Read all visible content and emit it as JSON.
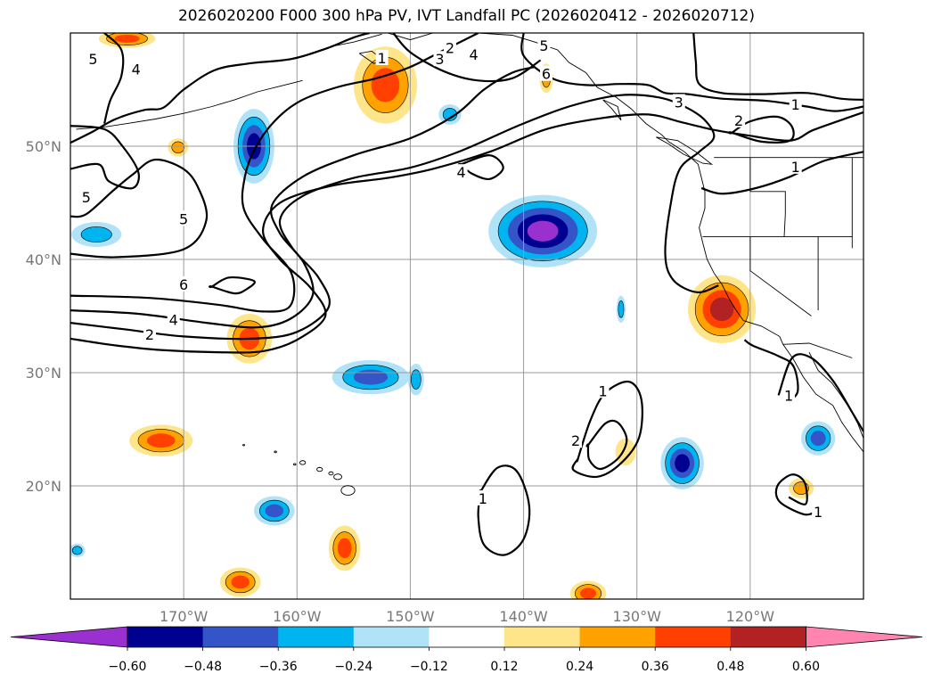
{
  "chart_data": {
    "type": "contour-map",
    "title": "2026020200 F000 300 hPa PV, IVT Landfall PC (2026020412 - 2026020712)",
    "map": {
      "lon_range": [
        -180,
        -110
      ],
      "lat_range": [
        10,
        60
      ],
      "parallels": [
        20,
        30,
        40,
        50
      ],
      "meridians": [
        -170,
        -160,
        -150,
        -140,
        -130,
        -120
      ],
      "lat_tick_labels": [
        "20°N",
        "30°N",
        "40°N",
        "50°N"
      ],
      "lon_tick_labels": [
        "170°W",
        "160°W",
        "150°W",
        "140°W",
        "130°W",
        "120°W"
      ],
      "grid": true
    },
    "colorbar": {
      "levels": [
        -0.6,
        -0.48,
        -0.36,
        -0.24,
        -0.12,
        0.12,
        0.24,
        0.36,
        0.48,
        0.6
      ],
      "tick_labels": [
        "−0.60",
        "−0.48",
        "−0.36",
        "−0.24",
        "−0.12",
        "0.12",
        "0.24",
        "0.36",
        "0.48",
        "0.60"
      ],
      "colors": [
        "#9b30d0",
        "#000090",
        "#3455c8",
        "#00b4f0",
        "#b0e2f8",
        "#ffffff",
        "#ffe58a",
        "#ffa200",
        "#ff4000",
        "#b22222",
        "#ff85b0"
      ],
      "extend": "both"
    },
    "pv_contour_labels": [
      {
        "value": "1",
        "lon": -152.5,
        "lat": 57.8
      },
      {
        "value": "2",
        "lon": -146.5,
        "lat": 58.7
      },
      {
        "value": "3",
        "lon": -147.4,
        "lat": 57.7
      },
      {
        "value": "4",
        "lon": -144.4,
        "lat": 58.1
      },
      {
        "value": "5",
        "lon": -138.2,
        "lat": 58.9
      },
      {
        "value": "6",
        "lon": -138.0,
        "lat": 56.4
      },
      {
        "value": "5",
        "lon": -178.0,
        "lat": 57.7
      },
      {
        "value": "4",
        "lon": -174.2,
        "lat": 56.8
      },
      {
        "value": "4",
        "lon": -145.5,
        "lat": 47.7
      },
      {
        "value": "5",
        "lon": -178.6,
        "lat": 45.5
      },
      {
        "value": "5",
        "lon": -170.0,
        "lat": 43.6
      },
      {
        "value": "6",
        "lon": -170.0,
        "lat": 37.8
      },
      {
        "value": "4",
        "lon": -170.9,
        "lat": 34.7
      },
      {
        "value": "2",
        "lon": -173.0,
        "lat": 33.4
      },
      {
        "value": "3",
        "lon": -126.3,
        "lat": 53.9
      },
      {
        "value": "2",
        "lon": -121.0,
        "lat": 52.3
      },
      {
        "value": "1",
        "lon": -116.0,
        "lat": 53.7
      },
      {
        "value": "1",
        "lon": -116.0,
        "lat": 48.2
      },
      {
        "value": "1",
        "lon": -133.0,
        "lat": 28.4
      },
      {
        "value": "2",
        "lon": -135.4,
        "lat": 24.0
      },
      {
        "value": "1",
        "lon": -143.6,
        "lat": 18.9
      },
      {
        "value": "1",
        "lon": -114.0,
        "lat": 17.7
      },
      {
        "value": "1",
        "lon": -116.6,
        "lat": 28.0
      }
    ],
    "pc_anomalies": [
      {
        "sign": "positive",
        "max": 0.48,
        "lon": -122.5,
        "lat": 35.6,
        "rx": 3.0,
        "ry": 3.0
      },
      {
        "sign": "positive",
        "max": 0.36,
        "lon": -152.2,
        "lat": 55.4,
        "rx": 2.8,
        "ry": 3.4
      },
      {
        "sign": "positive",
        "max": 0.36,
        "lon": -164.2,
        "lat": 33.0,
        "rx": 2.0,
        "ry": 2.2
      },
      {
        "sign": "positive",
        "max": 0.36,
        "lon": -172.0,
        "lat": 24.0,
        "rx": 2.8,
        "ry": 1.4
      },
      {
        "sign": "positive",
        "max": 0.36,
        "lon": -155.8,
        "lat": 14.5,
        "rx": 1.4,
        "ry": 2.0
      },
      {
        "sign": "positive",
        "max": 0.36,
        "lon": -165.0,
        "lat": 11.5,
        "rx": 1.8,
        "ry": 1.3
      },
      {
        "sign": "positive",
        "max": 0.36,
        "lon": -175.0,
        "lat": 59.5,
        "rx": 2.5,
        "ry": 0.8
      },
      {
        "sign": "positive",
        "max": 0.36,
        "lon": -134.3,
        "lat": 10.5,
        "rx": 1.6,
        "ry": 1.1
      },
      {
        "sign": "positive",
        "max": 0.24,
        "lon": -115.5,
        "lat": 19.8,
        "rx": 1.1,
        "ry": 0.9
      },
      {
        "sign": "positive",
        "max": 0.24,
        "lon": -170.5,
        "lat": 49.9,
        "rx": 0.9,
        "ry": 0.8
      },
      {
        "sign": "positive",
        "max": 0.24,
        "lon": -138.0,
        "lat": 56.0,
        "rx": 0.6,
        "ry": 1.3
      },
      {
        "sign": "positive",
        "max": 0.12,
        "lon": -131.0,
        "lat": 23.0,
        "rx": 0.9,
        "ry": 1.2
      },
      {
        "sign": "negative",
        "min": -0.6,
        "lon": -138.3,
        "lat": 42.5,
        "rx": 4.8,
        "ry": 3.2
      },
      {
        "sign": "negative",
        "min": -0.48,
        "lon": -126.0,
        "lat": 22.0,
        "rx": 1.9,
        "ry": 2.3
      },
      {
        "sign": "negative",
        "min": -0.48,
        "lon": -163.8,
        "lat": 50.0,
        "rx": 1.8,
        "ry": 3.3
      },
      {
        "sign": "negative",
        "min": -0.36,
        "lon": -153.5,
        "lat": 29.6,
        "rx": 3.4,
        "ry": 1.5
      },
      {
        "sign": "negative",
        "min": -0.36,
        "lon": -162.0,
        "lat": 17.8,
        "rx": 1.8,
        "ry": 1.3
      },
      {
        "sign": "negative",
        "min": -0.36,
        "lon": -114.0,
        "lat": 24.2,
        "rx": 1.5,
        "ry": 1.5
      },
      {
        "sign": "negative",
        "min": -0.24,
        "lon": -177.7,
        "lat": 42.2,
        "rx": 2.2,
        "ry": 1.1
      },
      {
        "sign": "negative",
        "min": -0.24,
        "lon": -146.5,
        "lat": 52.8,
        "rx": 1.0,
        "ry": 0.9
      },
      {
        "sign": "negative",
        "min": -0.24,
        "lon": -149.5,
        "lat": 29.4,
        "rx": 0.7,
        "ry": 1.4
      },
      {
        "sign": "negative",
        "min": -0.24,
        "lon": -131.4,
        "lat": 35.6,
        "rx": 0.4,
        "ry": 1.2
      },
      {
        "sign": "negative",
        "min": -0.24,
        "lon": -179.4,
        "lat": 14.3,
        "rx": 0.7,
        "ry": 0.6
      }
    ]
  }
}
